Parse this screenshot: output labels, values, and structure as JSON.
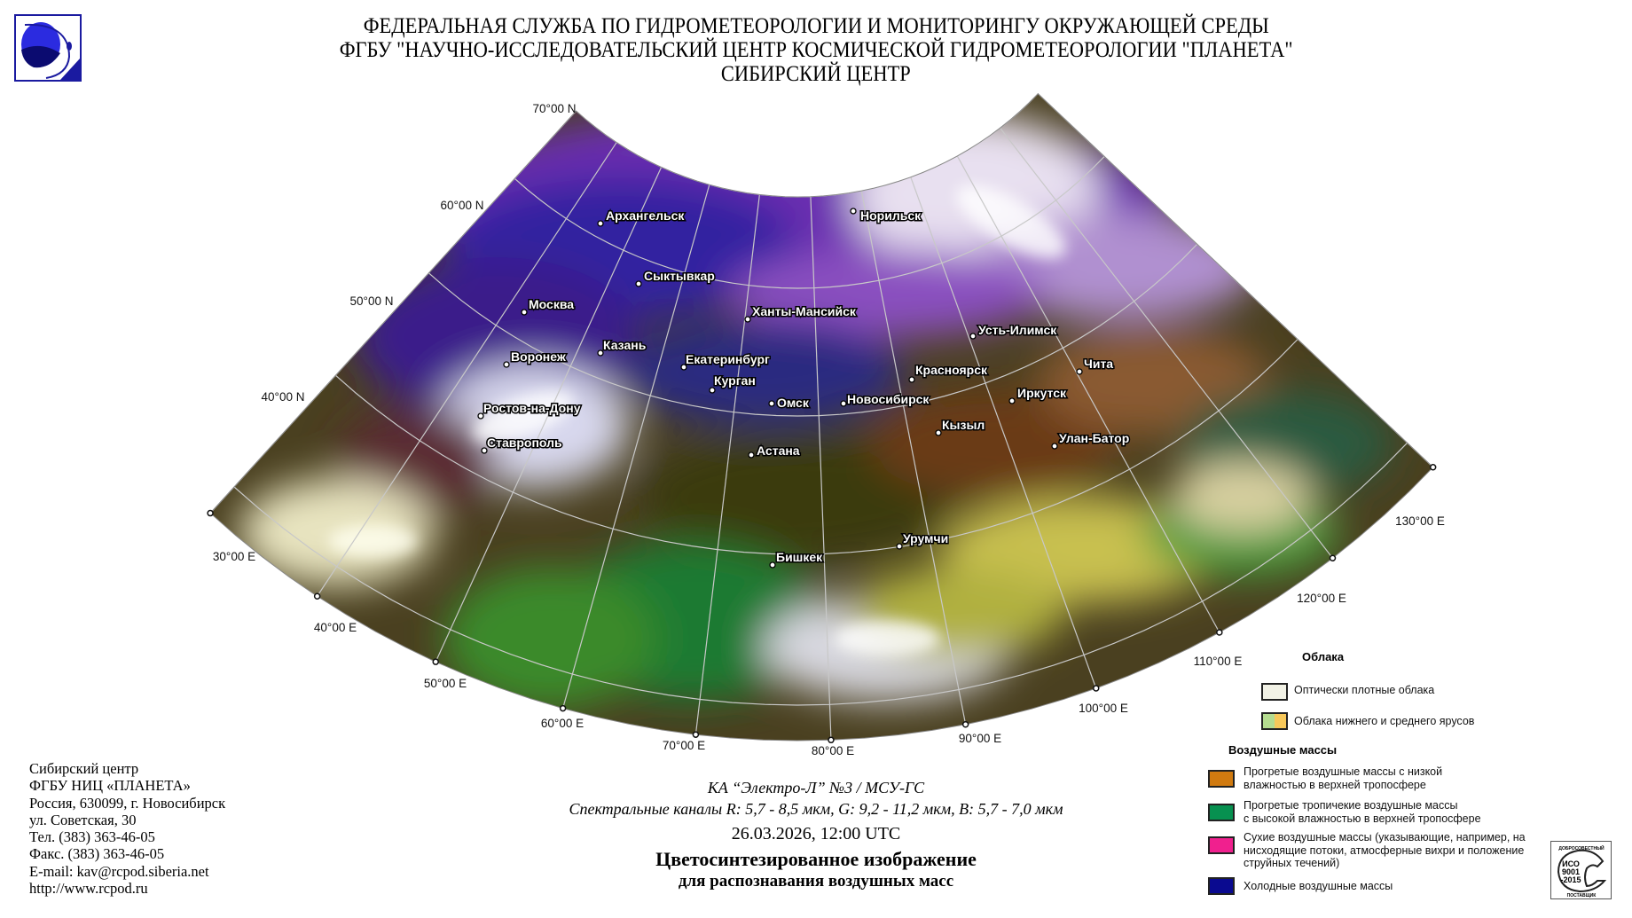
{
  "header": {
    "line1": "ФЕДЕРАЛЬНАЯ СЛУЖБА ПО ГИДРОМЕТЕОРОЛОГИИ И МОНИТОРИНГУ ОКРУЖАЮЩЕЙ СРЕДЫ",
    "line2": "ФГБУ \"НАУЧНО-ИССЛЕДОВАТЕЛЬСКИЙ ЦЕНТР КОСМИЧЕСКОЙ ГИДРОМЕТЕОРОЛОГИИ \"ПЛАНЕТА\"",
    "line3": "СИБИРСКИЙ ЦЕНТР",
    "logo_icon": "planeta-logo"
  },
  "map": {
    "latitude_labels": [
      "70°00 N",
      "60°00 N",
      "50°00 N",
      "40°00 N"
    ],
    "longitude_labels": [
      "30°00 E",
      "40°00 E",
      "50°00 E",
      "60°00 E",
      "70°00 E",
      "80°00 E",
      "90°00 E",
      "100°00 E",
      "110°00 E",
      "120°00 E",
      "130°00 E"
    ],
    "cities": [
      "Архангельск",
      "Норильск",
      "Сыктывкар",
      "Москва",
      "Ханты-Мансийск",
      "Усть-Илимск",
      "Казань",
      "Воронеж",
      "Екатеринбург",
      "Красноярск",
      "Чита",
      "Курган",
      "Омск",
      "Новосибирск",
      "Иркутск",
      "Ростов-на-Дону",
      "Кызыл",
      "Улан-Батор",
      "Ставрополь",
      "Астана",
      "Урумчи",
      "Бишкек"
    ]
  },
  "contact": {
    "lines": [
      "Сибирский центр",
      "ФГБУ НИЦ «ПЛАНЕТА»",
      "Россия, 630099, г. Новосибирск",
      "ул. Советская, 30",
      "Тел. (383) 363-46-05",
      "Факс. (383) 363-46-05",
      "E-mail: kav@rcpod.siberia.net",
      "http://www.rcpod.ru"
    ]
  },
  "caption": {
    "satellite": "КА “Электро-Л” №3 / МСУ-ГС",
    "channels": "Спектральные каналы R: 5,7 - 8,5 мкм, G: 9,2 - 11,2 мкм, B: 5,7 - 7,0 мкм",
    "datetime": "26.03.2026, 12:00 UTC",
    "title1": "Цветосинтезированное изображение",
    "title2": "для распознавания воздушных масс"
  },
  "legend": {
    "clouds_title": "Облака",
    "clouds": [
      {
        "label": "Оптически плотные облака",
        "colors": [
          "#f2f2e6"
        ]
      },
      {
        "label": "Облака нижнего и среднего ярусов",
        "colors": [
          "#b5dc90",
          "#f7c85a"
        ]
      }
    ],
    "air_title": "Воздушные массы",
    "air": [
      {
        "line1": "Прогретые воздушные массы с низкой",
        "line2": "влажностью в верхней тропосфере",
        "line3": "",
        "color": "#d07a10"
      },
      {
        "line1": "Прогретые тропичекие воздушные массы",
        "line2": "с высокой влажностью в верхней тропосфере",
        "line3": "",
        "color": "#079150"
      },
      {
        "line1": "Сухие воздушные массы (указывающие, например, на",
        "line2": "нисходящие потоки, атмосферные вихри и положение",
        "line3": "струйных течений)",
        "color": "#f0208e"
      },
      {
        "line1": "Холодные воздушные массы",
        "line2": "",
        "line3": "",
        "color": "#0a0a90"
      }
    ]
  },
  "stamp": {
    "top": "ДОБРОСОВЕСТНЫЙ",
    "l1": "ИСО",
    "l2": "9001",
    "l3": "-2015",
    "bottom": "ПОСТАВЩИК"
  }
}
